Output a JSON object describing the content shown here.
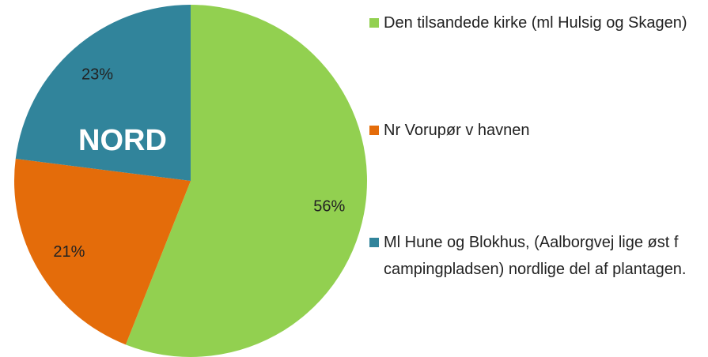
{
  "chart_data": {
    "type": "pie",
    "annotation": "NORD",
    "categories": [
      "Den tilsandede kirke (ml Hulsig og Skagen)",
      "Nr Vorupør v havnen",
      "Ml Hune og Blokhus, (Aalborgvej lige øst f campingpladsen) nordlige del af plantagen."
    ],
    "values": [
      56,
      21,
      23
    ],
    "value_labels": [
      "56%",
      "21%",
      "23%"
    ],
    "colors": [
      "#92d050",
      "#e46c0a",
      "#31849b"
    ],
    "legend": "right"
  }
}
